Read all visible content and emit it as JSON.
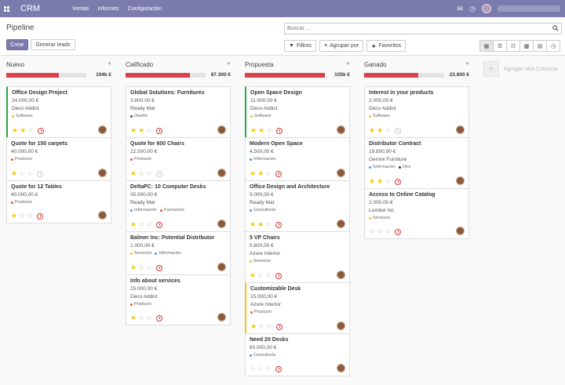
{
  "nav": {
    "app": "CRM",
    "menu": [
      "Ventas",
      "Informes",
      "Configuración"
    ],
    "icons": [
      "apps-icon",
      "chat-icon",
      "clock-icon",
      "user-avatar"
    ]
  },
  "control": {
    "breadcrumb": "Pipeline",
    "create": "Crear",
    "generate": "Generar leads",
    "search_placeholder": "Buscar ...",
    "filters": "Filtros",
    "group_by": "Agrupar por",
    "favorites": "Favoritos"
  },
  "add_column": "Agregar otra Columna",
  "colors": {
    "accent": "#7c7bad",
    "progress": "#d9414b",
    "tags": {
      "Software": "#f0c419",
      "Diseño": "#4c4c4c",
      "Producto": "#e25a2b",
      "Información": "#3b9fd8",
      "Formación": "#e25a2b",
      "Consultoría": "#3b9fd8",
      "Servicios": "#f0c419",
      "Otro": "#333333"
    }
  },
  "columns": [
    {
      "title": "Nuevo",
      "total": "104k €",
      "progress": 0.66,
      "cards": [
        {
          "title": "Office Design Project",
          "amount": "24.000,00 €",
          "company": "Deco Addict",
          "tags": [
            "Software"
          ],
          "stars": 2,
          "activity": "overdue",
          "border": "green"
        },
        {
          "title": "Quote for 150 carpets",
          "amount": "40.000,00 €",
          "company": "",
          "tags": [
            "Producto"
          ],
          "stars": 1,
          "activity": "none",
          "border": ""
        },
        {
          "title": "Quote for 12 Tables",
          "amount": "40.000,00 €",
          "company": "",
          "tags": [
            "Producto"
          ],
          "stars": 1,
          "activity": "overdue",
          "border": ""
        }
      ]
    },
    {
      "title": "Calificado",
      "total": "87.300 €",
      "progress": 0.8,
      "cards": [
        {
          "title": "Global Solutions: Furnitures",
          "amount": "3.800,00 €",
          "company": "Ready Mat",
          "tags": [
            "Diseño"
          ],
          "stars": 2,
          "activity": "overdue",
          "border": ""
        },
        {
          "title": "Quote for 600 Chairs",
          "amount": "22.500,00 €",
          "company": "",
          "tags": [
            "Producto"
          ],
          "stars": 1,
          "activity": "none",
          "border": ""
        },
        {
          "title": "DeltaPC: 10 Computer Desks",
          "amount": "35.000,00 €",
          "company": "Ready Mat",
          "tags": [
            "Información",
            "Formación"
          ],
          "stars": 1,
          "activity": "overdue",
          "border": ""
        },
        {
          "title": "Balmer Inc: Potential Distributor",
          "amount": "1.000,00 €",
          "company": "",
          "tags": [
            "Servicios",
            "Información"
          ],
          "stars": 1,
          "activity": "overdue",
          "border": ""
        },
        {
          "title": "Info about services",
          "amount": "25.000,00 €",
          "company": "Deco Addict",
          "tags": [
            "Producto"
          ],
          "stars": 1,
          "activity": "overdue",
          "border": ""
        }
      ]
    },
    {
      "title": "Propuesta",
      "total": "105k €",
      "progress": 1.0,
      "cards": [
        {
          "title": "Open Space Design",
          "amount": "11.000,00 €",
          "company": "Deco Addict",
          "tags": [
            "Software"
          ],
          "stars": 2,
          "activity": "overdue",
          "border": "green"
        },
        {
          "title": "Modern Open Space",
          "amount": "4.500,00 €",
          "company": "",
          "tags": [
            "Información"
          ],
          "stars": 2,
          "activity": "overdue",
          "border": ""
        },
        {
          "title": "Office Design and Architecture",
          "amount": "9.000,00 €",
          "company": "Ready Mat",
          "tags": [
            "Consultoría"
          ],
          "stars": 2,
          "activity": "overdue",
          "border": ""
        },
        {
          "title": "5 VP Chairs",
          "amount": "5.600,00 €",
          "company": "Azure Interior",
          "tags": [
            "Servicios"
          ],
          "stars": 1,
          "activity": "overdue",
          "border": ""
        },
        {
          "title": "Customizable Desk",
          "amount": "15.000,00 €",
          "company": "Azure Interior",
          "tags": [
            "Producto"
          ],
          "stars": 1,
          "activity": "overdue",
          "border": "yellow"
        },
        {
          "title": "Need 20 Desks",
          "amount": "60.000,00 €",
          "company": "",
          "tags": [
            "Consultoría"
          ],
          "stars": 0,
          "activity": "overdue",
          "border": ""
        }
      ]
    },
    {
      "title": "Ganado",
      "total": "23.800 €",
      "progress": 0.68,
      "cards": [
        {
          "title": "Interest in your products",
          "amount": "2.000,00 €",
          "company": "Deco Addict",
          "tags": [
            "Software"
          ],
          "stars": 2,
          "activity": "none",
          "border": ""
        },
        {
          "title": "Distributor Contract",
          "amount": "19.800,00 €",
          "company": "Gemini Furniture",
          "tags": [
            "Información",
            "Otro"
          ],
          "stars": 2,
          "activity": "overdue",
          "border": ""
        },
        {
          "title": "Access to Online Catalog",
          "amount": "2.000,00 €",
          "company": "Lumber Inc",
          "tags": [
            "Servicios"
          ],
          "stars": 0,
          "activity": "overdue",
          "border": ""
        }
      ]
    }
  ]
}
